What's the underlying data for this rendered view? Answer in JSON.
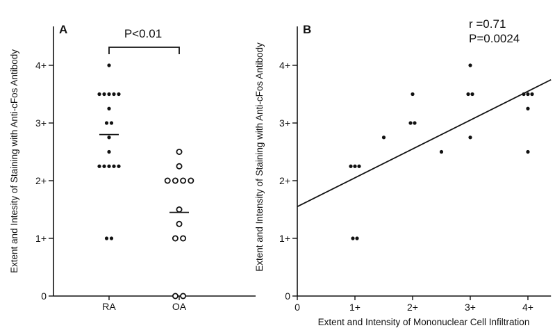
{
  "chart_data": [
    {
      "panel": "A",
      "type": "scatter",
      "ylabel": "Extent and Intesity of Staining with Anti-cFos Antibody",
      "xlabel": "",
      "ylim": [
        0,
        4
      ],
      "categories": [
        "RA",
        "OA"
      ],
      "y_ticks": [
        "0",
        "1+",
        "2+",
        "3+",
        "4+"
      ],
      "annotation": "P<0.01",
      "series": [
        {
          "category": "RA",
          "marker": "filled",
          "values": [
            4,
            3.5,
            3.5,
            3.5,
            3.5,
            3.5,
            3.25,
            3,
            3,
            2.75,
            2.5,
            2.25,
            2.25,
            2.25,
            2.25,
            2.25,
            1,
            1
          ],
          "mean": 2.8
        },
        {
          "category": "OA",
          "marker": "open",
          "values": [
            2.5,
            2.25,
            2,
            2,
            2,
            2,
            1.5,
            1.25,
            1,
            1,
            0,
            0
          ],
          "mean": 1.45
        }
      ]
    },
    {
      "panel": "B",
      "type": "scatter",
      "xlabel": "Extent and Intensity of Mononuclear Cell Infiltration",
      "ylabel": "Extent and Intensity of Staining with Anti-cFos Antibody",
      "xlim": [
        0,
        4.4
      ],
      "ylim": [
        0,
        4.4
      ],
      "x_ticks": [
        "0",
        "1+",
        "2+",
        "3+",
        "4+"
      ],
      "y_ticks": [
        "0",
        "1+",
        "2+",
        "3+",
        "4+"
      ],
      "stats": [
        "r =0.71",
        "P=0.0024"
      ],
      "points": [
        [
          1,
          2.25
        ],
        [
          1,
          2.25
        ],
        [
          1,
          2.25
        ],
        [
          1,
          1
        ],
        [
          1,
          1
        ],
        [
          1.5,
          2.75
        ],
        [
          2,
          3.5
        ],
        [
          2,
          3
        ],
        [
          2,
          3
        ],
        [
          2.5,
          2.5
        ],
        [
          3,
          4
        ],
        [
          3,
          3.5
        ],
        [
          3,
          3.5
        ],
        [
          3,
          2.75
        ],
        [
          4,
          3.5
        ],
        [
          4,
          3.5
        ],
        [
          4,
          3.5
        ],
        [
          4,
          3.25
        ],
        [
          4,
          2.5
        ]
      ],
      "regression": {
        "intercept": 1.55,
        "slope": 0.5
      }
    }
  ]
}
